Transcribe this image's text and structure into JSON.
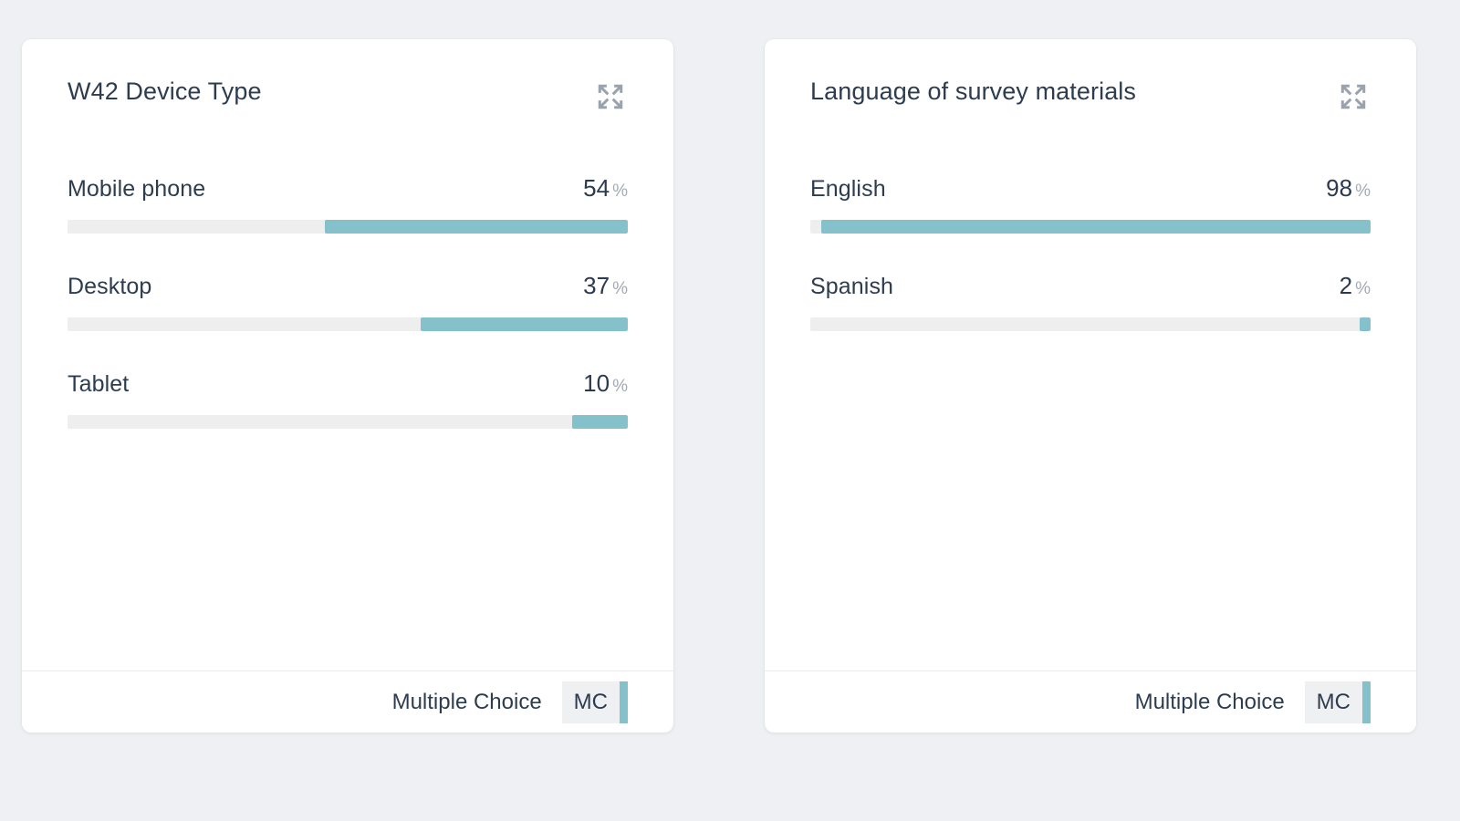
{
  "page": {
    "background_color": "#eef0f3",
    "card_background": "#ffffff",
    "accent_color": "#85c1cb",
    "track_color": "#eeeeee",
    "text_color": "#2e3c50",
    "muted_color": "#a4aab3"
  },
  "cards": [
    {
      "title": "W42 Device Type",
      "expand_icon": "expand-arrows-icon",
      "rows": [
        {
          "label": "Mobile phone",
          "value": "54",
          "unit": "%",
          "pct": 54
        },
        {
          "label": "Desktop",
          "value": "37",
          "unit": "%",
          "pct": 37
        },
        {
          "label": "Tablet",
          "value": "10",
          "unit": "%",
          "pct": 10
        }
      ],
      "footer": {
        "type_label": "Multiple Choice",
        "badge": "MC"
      }
    },
    {
      "title": "Language of survey materials",
      "expand_icon": "expand-arrows-icon",
      "rows": [
        {
          "label": "English",
          "value": "98",
          "unit": "%",
          "pct": 98
        },
        {
          "label": "Spanish",
          "value": "2",
          "unit": "%",
          "pct": 2
        }
      ],
      "footer": {
        "type_label": "Multiple Choice",
        "badge": "MC"
      }
    }
  ],
  "chart_data": [
    {
      "type": "bar",
      "orientation": "horizontal",
      "title": "W42 Device Type",
      "categories": [
        "Mobile phone",
        "Desktop",
        "Tablet"
      ],
      "values": [
        54,
        37,
        10
      ],
      "unit": "%",
      "xlim": [
        0,
        100
      ],
      "bar_alignment": "right",
      "question_type": "Multiple Choice"
    },
    {
      "type": "bar",
      "orientation": "horizontal",
      "title": "Language of survey materials",
      "categories": [
        "English",
        "Spanish"
      ],
      "values": [
        98,
        2
      ],
      "unit": "%",
      "xlim": [
        0,
        100
      ],
      "bar_alignment": "right",
      "question_type": "Multiple Choice"
    }
  ]
}
